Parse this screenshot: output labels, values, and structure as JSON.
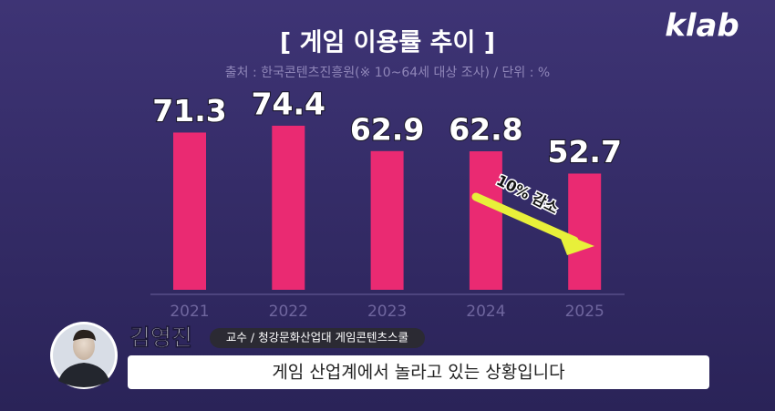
{
  "chart_data": {
    "type": "bar",
    "title": "[ 게임 이용률 추이 ]",
    "subtitle": "출처 : 한국콘텐츠진흥원(※ 10~64세 대상 조사) / 단위 : %",
    "categories": [
      "2021",
      "2022",
      "2023",
      "2024",
      "2025"
    ],
    "values": [
      71.3,
      74.4,
      62.9,
      62.8,
      52.7
    ],
    "color": "#ea2a72",
    "annotation": "10% 감소"
  },
  "overlay": {
    "logo": "klab",
    "speaker_name": "김영진",
    "speaker_role": "교수 / 청강문화산업대 게임콘텐츠스쿨",
    "caption": "게임 산업계에서 놀라고 있는 상황입니다"
  }
}
